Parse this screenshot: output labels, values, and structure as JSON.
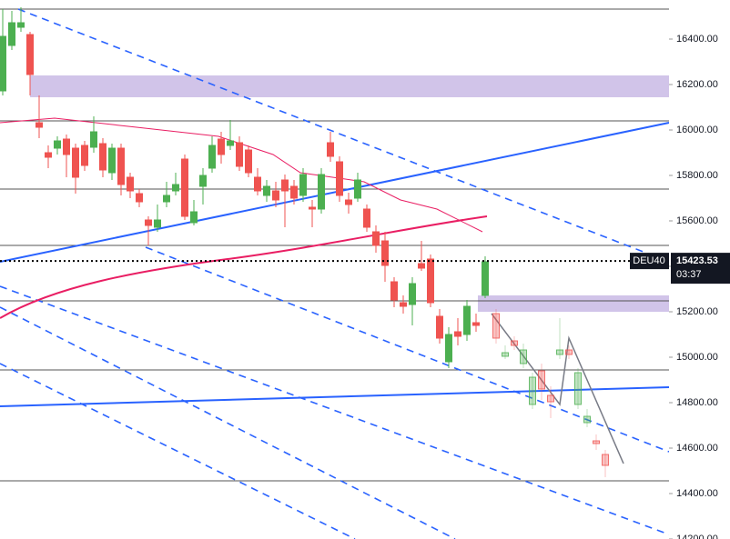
{
  "chart_data": {
    "type": "candlestick",
    "symbol": "DEU40",
    "current_price": 15423.53,
    "current_price_label": "15423.53",
    "countdown": "03:37",
    "up_color": "#4caf50",
    "down_color": "#ef5350",
    "ylim": [
      14200,
      16572
    ],
    "yticks": [
      {
        "value": 14200,
        "label": "14200.00"
      },
      {
        "value": 14400,
        "label": "14400.00"
      },
      {
        "value": 14600,
        "label": "14600.00"
      },
      {
        "value": 14800,
        "label": "14800.00"
      },
      {
        "value": 15000,
        "label": "15000.00"
      },
      {
        "value": 15200,
        "label": "15200.00"
      },
      {
        "value": 15400,
        "label": "15400.00"
      },
      {
        "value": 15600,
        "label": "15600.00"
      },
      {
        "value": 15800,
        "label": "15800.00"
      },
      {
        "value": 16000,
        "label": "16000.00"
      },
      {
        "value": 16200,
        "label": "16200.00"
      },
      {
        "value": 16400,
        "label": "16400.00"
      }
    ],
    "ohlc": [
      [
        16172,
        16532,
        16152,
        16412
      ],
      [
        16372,
        16524,
        16352,
        16472
      ],
      [
        16452,
        16540,
        16432,
        16472
      ],
      [
        16420,
        16432,
        16152,
        16244
      ],
      [
        16032,
        16152,
        15964,
        16012
      ],
      [
        15900,
        15932,
        15832,
        15880
      ],
      [
        15920,
        15972,
        15892,
        15952
      ],
      [
        15960,
        15980,
        15792,
        15892
      ],
      [
        15920,
        15940,
        15720,
        15792
      ],
      [
        15932,
        15952,
        15820,
        15844
      ],
      [
        15924,
        16060,
        15900,
        15992
      ],
      [
        15940,
        15964,
        15792,
        15824
      ],
      [
        15812,
        15940,
        15780,
        15920
      ],
      [
        15920,
        15940,
        15712,
        15760
      ],
      [
        15792,
        15812,
        15700,
        15732
      ],
      [
        15720,
        15740,
        15660,
        15684
      ],
      [
        15604,
        15620,
        15492,
        15580
      ],
      [
        15572,
        15672,
        15552,
        15604
      ],
      [
        15684,
        15772,
        15660,
        15712
      ],
      [
        15732,
        15812,
        15712,
        15760
      ],
      [
        15872,
        15892,
        15604,
        15620
      ],
      [
        15592,
        15692,
        15580,
        15640
      ],
      [
        15752,
        15832,
        15672,
        15800
      ],
      [
        15832,
        15972,
        15812,
        15932
      ],
      [
        15960,
        15992,
        15852,
        15892
      ],
      [
        15932,
        16044,
        15912,
        15952
      ],
      [
        15944,
        15972,
        15820,
        15840
      ],
      [
        15912,
        15932,
        15792,
        15812
      ],
      [
        15792,
        15832,
        15712,
        15732
      ],
      [
        15712,
        15780,
        15684,
        15752
      ],
      [
        15732,
        15772,
        15660,
        15692
      ],
      [
        15780,
        15804,
        15572,
        15732
      ],
      [
        15752,
        15780,
        15672,
        15700
      ],
      [
        15712,
        15832,
        15684,
        15804
      ],
      [
        15660,
        15692,
        15572,
        15652
      ],
      [
        15652,
        15832,
        15632,
        15804
      ],
      [
        15944,
        15992,
        15860,
        15884
      ],
      [
        15860,
        15884,
        15684,
        15712
      ],
      [
        15692,
        15724,
        15632,
        15672
      ],
      [
        15700,
        15812,
        15684,
        15780
      ],
      [
        15652,
        15672,
        15552,
        15572
      ],
      [
        15552,
        15580,
        15460,
        15492
      ],
      [
        15512,
        15552,
        15332,
        15404
      ],
      [
        15332,
        15352,
        15220,
        15252
      ],
      [
        15240,
        15272,
        15192,
        15224
      ],
      [
        15232,
        15352,
        15140,
        15324
      ],
      [
        15412,
        15512,
        15380,
        15392
      ],
      [
        15432,
        15452,
        15220,
        15240
      ],
      [
        15180,
        15212,
        15060,
        15084
      ],
      [
        14980,
        15132,
        14952,
        15100
      ],
      [
        15112,
        15172,
        15052,
        15092
      ],
      [
        15100,
        15252,
        15072,
        15224
      ],
      [
        15152,
        15192,
        15112,
        15140
      ],
      [
        15272,
        15444,
        15260,
        15420
      ]
    ],
    "projection_ohlc": [
      [
        15192,
        15212,
        15060,
        15084
      ],
      [
        15004,
        15052,
        14992,
        15020
      ],
      [
        15072,
        15092,
        15032,
        15052
      ],
      [
        14972,
        15060,
        14952,
        15032
      ],
      [
        14792,
        14932,
        14772,
        14912
      ],
      [
        14940,
        14972,
        14812,
        14860
      ],
      [
        14832,
        14872,
        14732,
        14804
      ],
      [
        15012,
        15172,
        14992,
        15032
      ],
      [
        15032,
        15052,
        14992,
        15012
      ],
      [
        14792,
        14952,
        14772,
        14932
      ],
      [
        14712,
        14772,
        14692,
        14740
      ],
      [
        14632,
        14660,
        14592,
        14620
      ],
      [
        14572,
        14592,
        14472,
        14524
      ]
    ]
  }
}
